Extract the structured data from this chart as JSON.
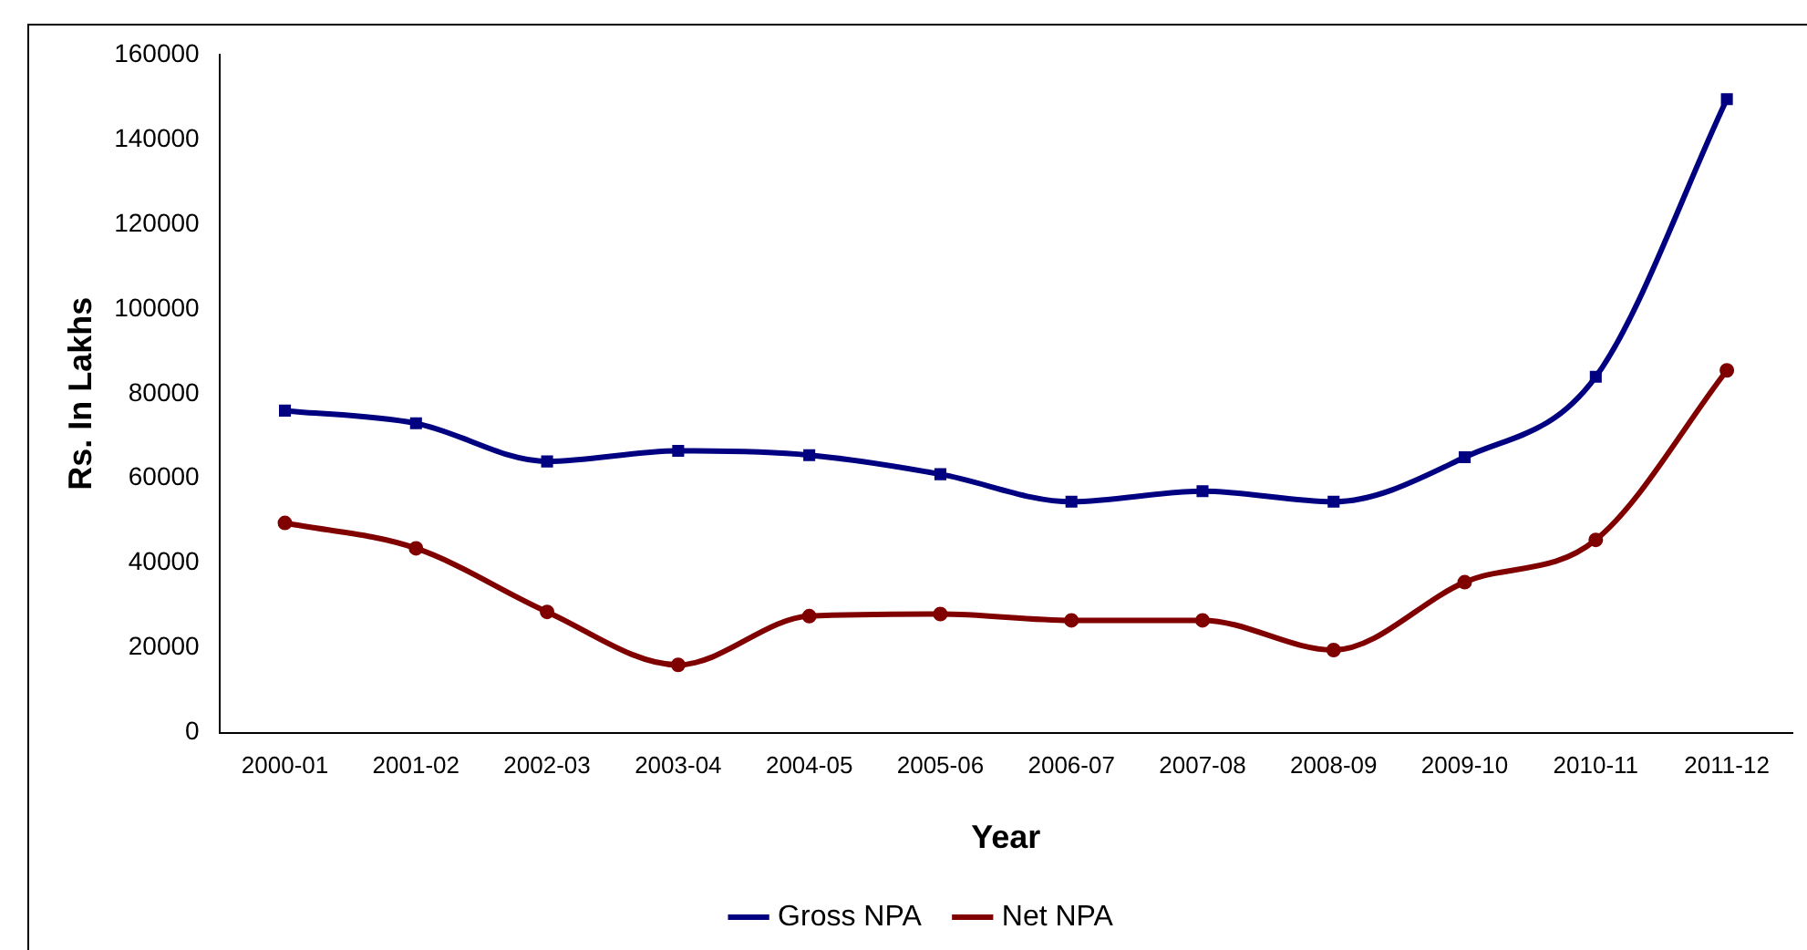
{
  "chart_data": {
    "type": "line",
    "xlabel": "Year",
    "ylabel": "Rs. In Lakhs",
    "categories": [
      "2000-01",
      "2001-02",
      "2002-03",
      "2003-04",
      "2004-05",
      "2005-06",
      "2006-07",
      "2007-08",
      "2008-09",
      "2009-10",
      "2010-11",
      "2011-12"
    ],
    "series": [
      {
        "name": "Gross NPA",
        "color": "#000080",
        "marker": "square",
        "values": [
          76000,
          73000,
          64000,
          66500,
          65500,
          61000,
          54500,
          57000,
          54500,
          65000,
          84000,
          149500
        ]
      },
      {
        "name": "Net NPA",
        "color": "#800000",
        "marker": "circle",
        "values": [
          49500,
          43500,
          28500,
          16000,
          27500,
          28000,
          26500,
          26500,
          19500,
          35500,
          45500,
          85500
        ]
      }
    ],
    "ylim": [
      0,
      160000
    ],
    "yticks": [
      0,
      20000,
      40000,
      60000,
      80000,
      100000,
      120000,
      140000,
      160000
    ],
    "grid": false,
    "legend": "bottom"
  }
}
